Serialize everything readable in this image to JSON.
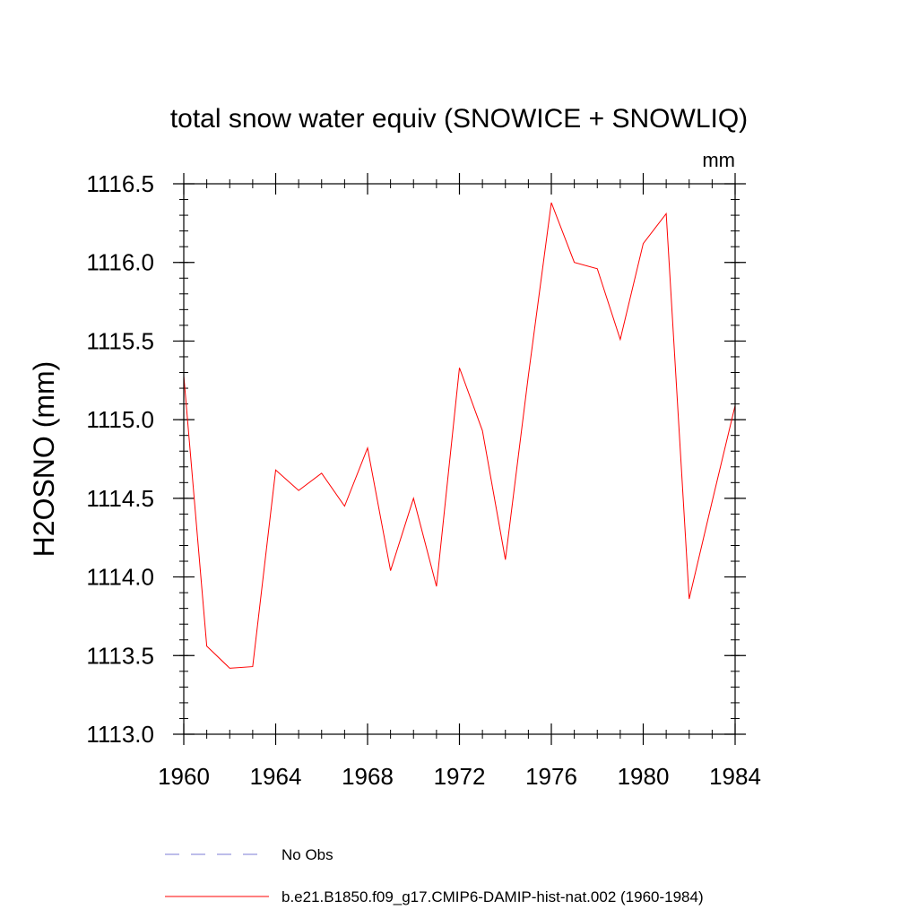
{
  "chart_data": {
    "type": "line",
    "title": "total snow water equiv (SNOWICE + SNOWLIQ)",
    "units": "mm",
    "ylabel": "H2OSNO  (mm)",
    "xlabel": "",
    "xlim": [
      1960,
      1984
    ],
    "ylim": [
      1113.0,
      1116.5
    ],
    "x_ticks": [
      "1960",
      "1964",
      "1968",
      "1972",
      "1976",
      "1980",
      "1984"
    ],
    "y_ticks": [
      "1113.0",
      "1113.5",
      "1114.0",
      "1114.5",
      "1115.0",
      "1115.5",
      "1116.0",
      "1116.5"
    ],
    "grid": false,
    "legend_placement": "bottom",
    "series": [
      {
        "name": "No Obs",
        "style": "dashed",
        "color": "#7b7bd6",
        "x": [],
        "values": []
      },
      {
        "name": "b.e21.B1850.f09_g17.CMIP6-DAMIP-hist-nat.002 (1960-1984)",
        "style": "solid",
        "color": "#ff0000",
        "x": [
          1960,
          1961,
          1962,
          1963,
          1964,
          1965,
          1966,
          1967,
          1968,
          1969,
          1970,
          1971,
          1972,
          1973,
          1974,
          1975,
          1976,
          1977,
          1978,
          1979,
          1980,
          1981,
          1982,
          1983,
          1984
        ],
        "values": [
          1115.28,
          1113.56,
          1113.42,
          1113.43,
          1114.68,
          1114.55,
          1114.66,
          1114.45,
          1114.82,
          1114.04,
          1114.5,
          1113.94,
          1115.33,
          1114.93,
          1114.11,
          1115.28,
          1116.38,
          1116.0,
          1115.96,
          1115.51,
          1116.12,
          1116.31,
          1113.86,
          1114.48,
          1115.09
        ]
      }
    ]
  }
}
